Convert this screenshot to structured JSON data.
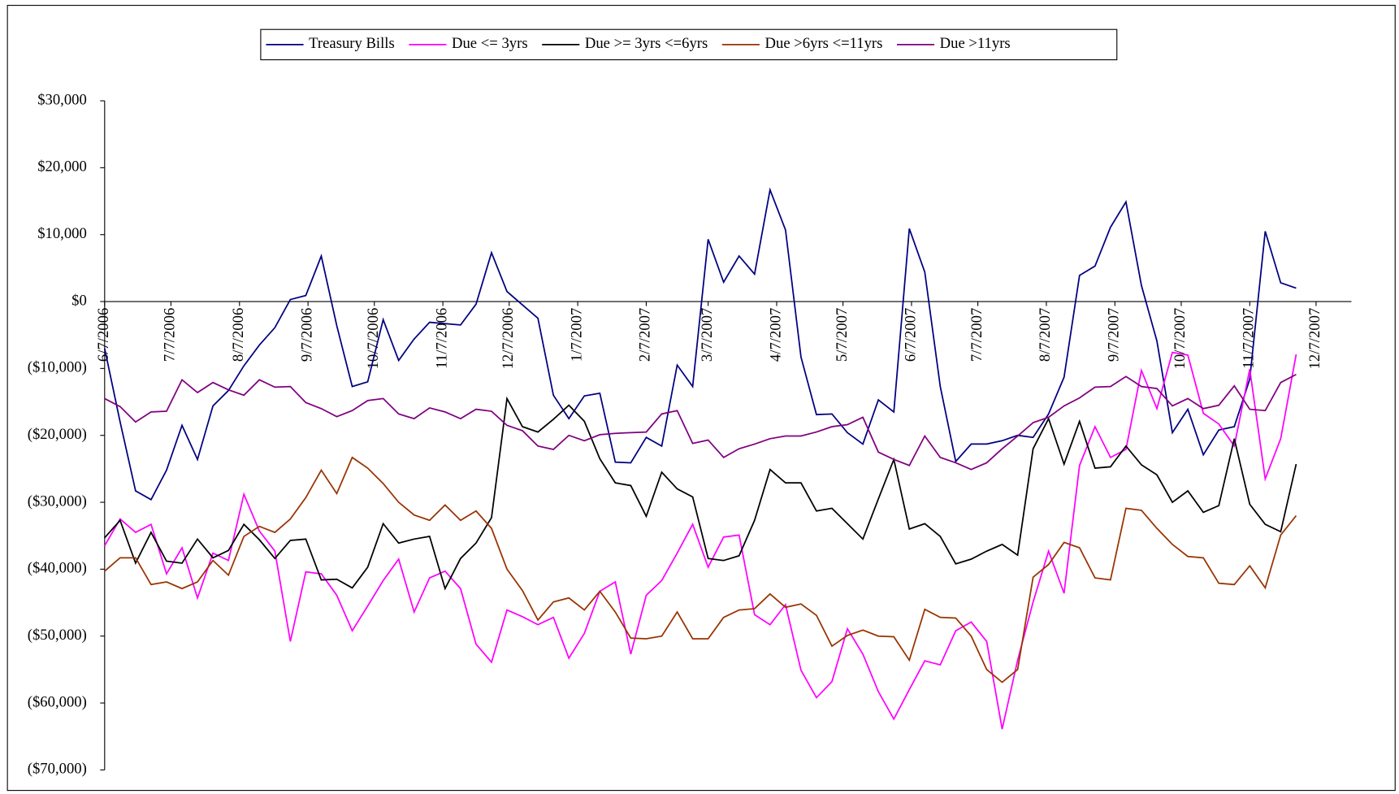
{
  "chart_data": {
    "type": "line",
    "x": [
      "6/7/2006",
      "6/14/2006",
      "6/21/2006",
      "6/28/2006",
      "7/5/2006",
      "7/12/2006",
      "7/19/2006",
      "7/26/2006",
      "8/2/2006",
      "8/9/2006",
      "8/16/2006",
      "8/23/2006",
      "8/30/2006",
      "9/6/2006",
      "9/13/2006",
      "9/20/2006",
      "9/27/2006",
      "10/4/2006",
      "10/11/2006",
      "10/18/2006",
      "10/25/2006",
      "11/1/2006",
      "11/8/2006",
      "11/15/2006",
      "11/22/2006",
      "11/29/2006",
      "12/6/2006",
      "12/13/2006",
      "12/20/2006",
      "12/27/2006",
      "1/3/2007",
      "1/10/2007",
      "1/17/2007",
      "1/24/2007",
      "1/31/2007",
      "2/7/2007",
      "2/14/2007",
      "2/21/2007",
      "2/28/2007",
      "3/7/2007",
      "3/14/2007",
      "3/21/2007",
      "3/28/2007",
      "4/4/2007",
      "4/11/2007",
      "4/18/2007",
      "4/25/2007",
      "5/2/2007",
      "5/9/2007",
      "5/16/2007",
      "5/23/2007",
      "5/30/2007",
      "6/6/2007",
      "6/13/2007",
      "6/20/2007",
      "6/27/2007",
      "7/4/2007",
      "7/11/2007",
      "7/18/2007",
      "7/25/2007",
      "8/1/2007",
      "8/8/2007",
      "8/15/2007",
      "8/22/2007",
      "8/29/2007",
      "9/5/2007",
      "9/12/2007",
      "9/19/2007",
      "9/26/2007",
      "10/3/2007",
      "10/10/2007",
      "10/17/2007",
      "10/24/2007",
      "10/31/2007",
      "11/7/2007",
      "11/14/2007",
      "11/21/2007",
      "11/28/2007"
    ],
    "series": [
      {
        "name": "Treasury Bills",
        "color": "#000080",
        "values": [
          -7000,
          -18000,
          -28300,
          -29600,
          -25200,
          -18500,
          -23600,
          -15600,
          -13300,
          -9600,
          -6500,
          -3900,
          300,
          900,
          6800,
          -3600,
          -12700,
          -12000,
          -2700,
          -8800,
          -5600,
          -3100,
          -3300,
          -3500,
          -400,
          7300,
          1500,
          -500,
          -2500,
          -14000,
          -17500,
          -14100,
          -13700,
          -24000,
          -24100,
          -20300,
          -21600,
          -9500,
          -12700,
          9300,
          2900,
          6800,
          4100,
          16700,
          10700,
          -8300,
          -16900,
          -16800,
          -19600,
          -21300,
          -14700,
          -16500,
          10900,
          4400,
          -12700,
          -23900,
          -21300,
          -21300,
          -20800,
          -20000,
          -20300,
          -16800,
          -11300,
          3900,
          5300,
          11100,
          14900,
          2400,
          -5900,
          -19600,
          -16100,
          -22900,
          -19200,
          -18700,
          -11600,
          10500,
          2800,
          2000
        ]
      },
      {
        "name": "Due <= 3yrs",
        "color": "#ff00ff",
        "values": [
          -36500,
          -32500,
          -34500,
          -33300,
          -40700,
          -36800,
          -44300,
          -37600,
          -38700,
          -28800,
          -34300,
          -37300,
          -50800,
          -40400,
          -40700,
          -43900,
          -49200,
          -45500,
          -41700,
          -38500,
          -46400,
          -41300,
          -40300,
          -42900,
          -51200,
          -53900,
          -46100,
          -47100,
          -48300,
          -47200,
          -53300,
          -49600,
          -43300,
          -41900,
          -52700,
          -43900,
          -41700,
          -37600,
          -33300,
          -39700,
          -35200,
          -34900,
          -46800,
          -48300,
          -45300,
          -55100,
          -59200,
          -56800,
          -48900,
          -52700,
          -58300,
          -62400,
          -58000,
          -53700,
          -54300,
          -49200,
          -47900,
          -50800,
          -63900,
          -53600,
          -44900,
          -37300,
          -43600,
          -24500,
          -18700,
          -23300,
          -22100,
          -10300,
          -16000,
          -7600,
          -8000,
          -16700,
          -18300,
          -21600,
          -10100,
          -26500,
          -20500,
          -7900
        ]
      },
      {
        "name": "Due >= 3yrs <=6yrs",
        "color": "#000000",
        "values": [
          -35300,
          -32700,
          -39100,
          -34500,
          -38800,
          -39100,
          -35500,
          -38300,
          -37200,
          -33300,
          -35600,
          -38400,
          -35700,
          -35500,
          -41600,
          -41500,
          -42800,
          -39700,
          -33200,
          -36100,
          -35500,
          -35100,
          -42900,
          -38400,
          -36100,
          -32300,
          -14500,
          -18700,
          -19500,
          -17600,
          -15500,
          -17900,
          -23500,
          -27100,
          -27500,
          -32100,
          -25500,
          -28000,
          -29200,
          -38400,
          -38700,
          -38000,
          -32700,
          -25100,
          -27100,
          -27100,
          -31300,
          -30900,
          -33200,
          -35500,
          -29500,
          -23600,
          -34000,
          -33200,
          -35100,
          -39200,
          -38500,
          -37300,
          -36300,
          -37900,
          -22000,
          -17500,
          -24300,
          -17900,
          -24900,
          -24700,
          -21600,
          -24400,
          -25900,
          -30000,
          -28300,
          -31500,
          -30500,
          -20500,
          -30300,
          -33300,
          -34400,
          -24300
        ]
      },
      {
        "name": "Due >6yrs <=11yrs",
        "color": "#993300",
        "values": [
          -40300,
          -38300,
          -38300,
          -42300,
          -41900,
          -42900,
          -41900,
          -38700,
          -40900,
          -35100,
          -33600,
          -34500,
          -32500,
          -29300,
          -25200,
          -28700,
          -23300,
          -24900,
          -27200,
          -30000,
          -31900,
          -32700,
          -30400,
          -32700,
          -31300,
          -33900,
          -40000,
          -43200,
          -47600,
          -44900,
          -44300,
          -46100,
          -43300,
          -46400,
          -50300,
          -50400,
          -50000,
          -46400,
          -50400,
          -50400,
          -47200,
          -46100,
          -45900,
          -43700,
          -45700,
          -45200,
          -46900,
          -51500,
          -49900,
          -49100,
          -50000,
          -50100,
          -53600,
          -46000,
          -47200,
          -47300,
          -50000,
          -55000,
          -56900,
          -55000,
          -41200,
          -39300,
          -36000,
          -36800,
          -41300,
          -41600,
          -30900,
          -31200,
          -33900,
          -36300,
          -38100,
          -38300,
          -42100,
          -42300,
          -39500,
          -42800,
          -34900,
          -32000
        ]
      },
      {
        "name": "Due >11yrs",
        "color": "#800080",
        "values": [
          -14500,
          -15700,
          -18000,
          -16500,
          -16400,
          -11700,
          -13600,
          -12100,
          -13200,
          -14000,
          -11700,
          -12800,
          -12700,
          -15100,
          -16000,
          -17200,
          -16300,
          -14800,
          -14500,
          -16800,
          -17500,
          -15900,
          -16500,
          -17500,
          -16100,
          -16400,
          -18500,
          -19300,
          -21600,
          -22100,
          -20000,
          -20800,
          -19900,
          -19700,
          -19600,
          -19500,
          -16800,
          -16300,
          -21200,
          -20700,
          -23300,
          -22000,
          -21300,
          -20500,
          -20100,
          -20100,
          -19500,
          -18700,
          -18400,
          -17300,
          -22500,
          -23600,
          -24500,
          -20100,
          -23300,
          -24100,
          -25100,
          -24100,
          -22000,
          -20100,
          -18100,
          -17300,
          -15600,
          -14400,
          -12800,
          -12700,
          -11200,
          -12700,
          -13000,
          -15600,
          -14500,
          -16000,
          -15500,
          -12600,
          -16100,
          -16300,
          -12100,
          -10900
        ]
      }
    ],
    "xlim": [
      "6/7/2006",
      "12/23/2007"
    ],
    "xticks": [
      "6/7/2006",
      "7/7/2006",
      "8/7/2006",
      "9/7/2006",
      "10/7/2006",
      "11/7/2006",
      "12/7/2006",
      "1/7/2007",
      "2/7/2007",
      "3/7/2007",
      "4/7/2007",
      "5/7/2007",
      "6/7/2007",
      "7/7/2007",
      "8/7/2007",
      "9/7/2007",
      "10/7/2007",
      "11/7/2007",
      "12/7/2007"
    ],
    "ylim": [
      -70000,
      30000
    ],
    "yticks": [
      {
        "value": -70000,
        "label": "($70,000)"
      },
      {
        "value": -60000,
        "label": "($60,000)"
      },
      {
        "value": -50000,
        "label": "($50,000)"
      },
      {
        "value": -40000,
        "label": "($40,000)"
      },
      {
        "value": -30000,
        "label": "($30,000)"
      },
      {
        "value": -20000,
        "label": "($20,000)"
      },
      {
        "value": -10000,
        "label": "($10,000)"
      },
      {
        "value": 0,
        "label": "$0"
      },
      {
        "value": 10000,
        "label": "$10,000"
      },
      {
        "value": 20000,
        "label": "$20,000"
      },
      {
        "value": 30000,
        "label": "$30,000"
      }
    ],
    "negative_label_color": "#ff0000",
    "grid": false,
    "legend": "top"
  }
}
